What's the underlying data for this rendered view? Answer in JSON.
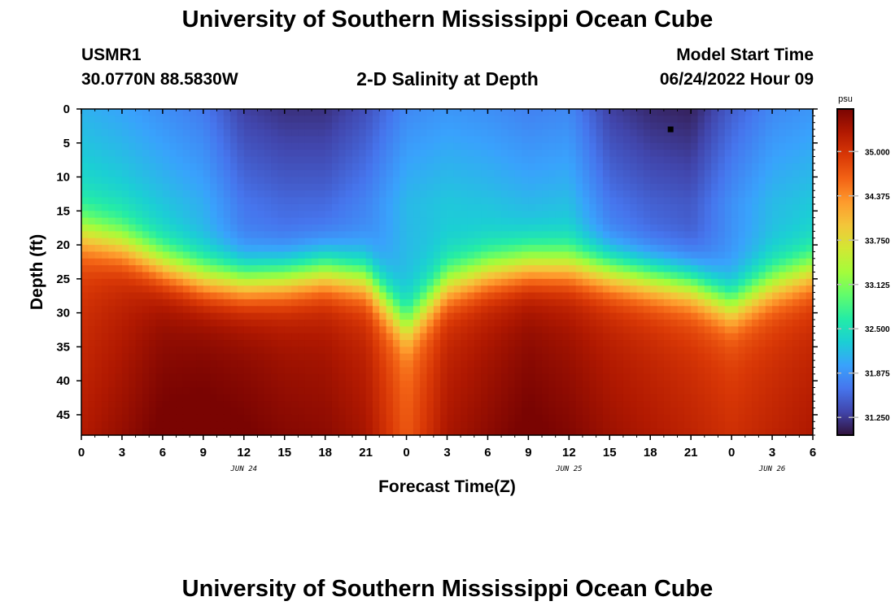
{
  "header": {
    "title": "University of Southern Mississippi Ocean Cube",
    "station": "USMR1",
    "coordinates": "30.0770N  88.5830W",
    "subtitle": "2-D Salinity at Depth",
    "model_start_label": "Model Start Time",
    "model_start_value": "06/24/2022 Hour 09"
  },
  "footer": {
    "title": "University of Southern Mississippi Ocean Cube"
  },
  "chart_data": {
    "type": "heatmap",
    "title": "2-D Salinity at Depth",
    "xlabel": "Forecast Time(Z)",
    "ylabel": "Depth (ft)",
    "x_hours_from_jun24_00": [
      0,
      54
    ],
    "x_tick_labels": [
      "0",
      "3",
      "6",
      "9",
      "12",
      "15",
      "18",
      "21",
      "0",
      "3",
      "6",
      "9",
      "12",
      "15",
      "18",
      "21",
      "0",
      "3",
      "6"
    ],
    "day_labels": [
      {
        "label": "JUN 24",
        "hour": 12
      },
      {
        "label": "JUN 25",
        "hour": 36
      },
      {
        "label": "JUN 26",
        "hour": 51
      }
    ],
    "ylim": [
      0,
      48
    ],
    "y_ticks": [
      0,
      5,
      10,
      15,
      20,
      25,
      30,
      35,
      40,
      45
    ],
    "colorbar": {
      "unit": "psu",
      "range": [
        31.0,
        35.6
      ],
      "ticks": [
        31.25,
        31.875,
        32.5,
        33.125,
        33.75,
        34.375,
        35.0
      ],
      "tick_labels": [
        "31.250",
        "31.875",
        "32.500",
        "33.125",
        "33.750",
        "34.375",
        "35.000"
      ],
      "colors": [
        "#30123b",
        "#4145ab",
        "#4675ed",
        "#39a2fc",
        "#1bcfd4",
        "#24eca6",
        "#61fc6c",
        "#a4fc3b",
        "#d1e834",
        "#f3c63a",
        "#fe9b2d",
        "#f36315",
        "#d93806",
        "#b11901",
        "#7a0402"
      ]
    },
    "profile_columns": {
      "hours": [
        0,
        3,
        6,
        9,
        12,
        15,
        18,
        21,
        24,
        27,
        30,
        33,
        36,
        39,
        42,
        45,
        48,
        51,
        54
      ],
      "halocline_depth_ft": [
        18.5,
        20,
        23,
        25,
        25.5,
        25,
        24,
        25,
        32,
        26,
        24,
        23,
        23,
        24,
        25,
        26,
        29,
        26,
        24
      ],
      "surface_salinity": [
        32.1,
        32.0,
        31.85,
        31.7,
        31.3,
        31.2,
        31.2,
        31.4,
        31.8,
        31.9,
        31.85,
        31.75,
        31.8,
        31.3,
        31.15,
        31.1,
        31.5,
        31.8,
        31.9
      ],
      "bottom_salinity": [
        35.0,
        35.2,
        35.45,
        35.5,
        35.45,
        35.35,
        35.3,
        35.15,
        34.6,
        35.15,
        35.3,
        35.45,
        35.35,
        35.2,
        35.1,
        35.0,
        34.9,
        35.0,
        35.1
      ]
    },
    "marker": {
      "hour": 43.5,
      "depth_ft": 3
    }
  }
}
